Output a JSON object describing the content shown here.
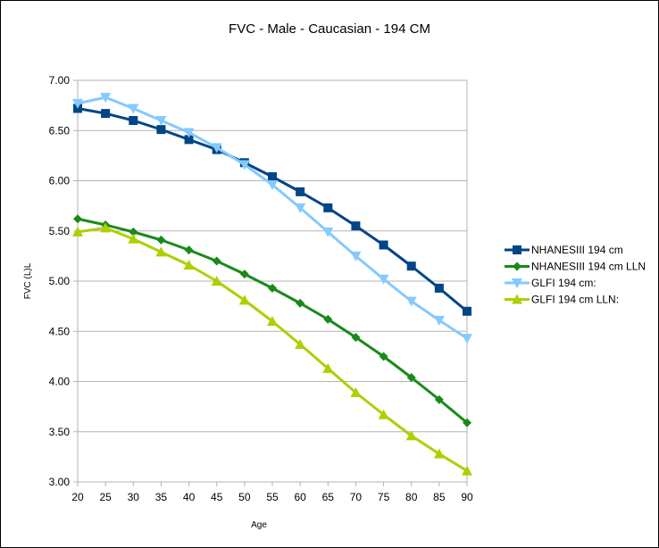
{
  "chart_data": {
    "type": "line",
    "title": "FVC - Male - Caucasian - 194 CM",
    "xlabel": "Age",
    "ylabel": "FVC  (L)L",
    "x": [
      20,
      25,
      30,
      35,
      40,
      45,
      50,
      55,
      60,
      65,
      70,
      75,
      80,
      85,
      90
    ],
    "xlim": [
      20,
      90
    ],
    "ylim": [
      3.0,
      7.0
    ],
    "yticks": [
      "3.00",
      "3.50",
      "4.00",
      "4.50",
      "5.00",
      "5.50",
      "6.00",
      "6.50",
      "7.00"
    ],
    "xticks": [
      "20",
      "25",
      "30",
      "35",
      "40",
      "45",
      "50",
      "55",
      "60",
      "65",
      "70",
      "75",
      "80",
      "85",
      "90"
    ],
    "grid": true,
    "legend_position": "right",
    "series": [
      {
        "name": "NHANESIII 194 cm",
        "color": "#004586",
        "marker": "square",
        "values": [
          6.72,
          6.67,
          6.6,
          6.51,
          6.41,
          6.31,
          6.18,
          6.04,
          5.89,
          5.73,
          5.55,
          5.36,
          5.15,
          4.93,
          4.7
        ]
      },
      {
        "name": "NHANESIII 194 cm LLN",
        "color": "#198A1A",
        "marker": "diamond",
        "values": [
          5.62,
          5.56,
          5.49,
          5.41,
          5.31,
          5.2,
          5.07,
          4.93,
          4.78,
          4.62,
          4.44,
          4.25,
          4.04,
          3.82,
          3.59
        ]
      },
      {
        "name": "GLFI 194 cm:",
        "color": "#83CAFF",
        "marker": "triangle-down",
        "values": [
          6.77,
          6.83,
          6.72,
          6.6,
          6.48,
          6.33,
          6.16,
          5.96,
          5.73,
          5.49,
          5.25,
          5.02,
          4.8,
          4.61,
          4.43
        ]
      },
      {
        "name": "GLFI 194 cm LLN:",
        "color": "#AECF00",
        "marker": "triangle-up",
        "values": [
          5.49,
          5.53,
          5.42,
          5.29,
          5.16,
          5.0,
          4.81,
          4.6,
          4.37,
          4.13,
          3.89,
          3.67,
          3.46,
          3.28,
          3.11
        ]
      }
    ]
  }
}
